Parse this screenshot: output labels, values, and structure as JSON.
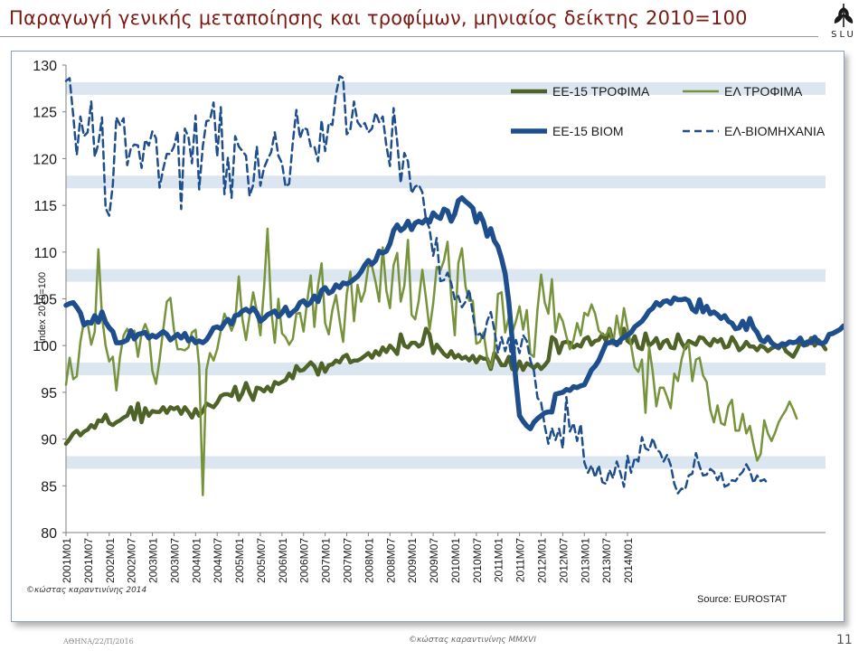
{
  "slide": {
    "title": "Παραγωγή γενικής μεταποίησης και τροφίμων, μηνιαίος δείκτης 2010=100",
    "logo_text": "SLU",
    "footer_left": "ΑΘΗΝΑ/22/Π/2016",
    "footer_center": "©κώστας καραντινίνης MMXVI",
    "page_number": "11"
  },
  "chart_data": {
    "type": "line",
    "ylabel": "Index 2010=100",
    "ylim": [
      80,
      130
    ],
    "yticks": [
      80,
      85,
      90,
      95,
      100,
      105,
      110,
      115,
      120,
      125,
      130
    ],
    "xtick_labels": [
      "2001M01",
      "2001M07",
      "2002M01",
      "2002M07",
      "2003M01",
      "2003M07",
      "2004M01",
      "2004M07",
      "2005M01",
      "2005M07",
      "2006M01",
      "2006M07",
      "2007M01",
      "2007M07",
      "2008M01",
      "2008M07",
      "2009M01",
      "2009M07",
      "2010M01",
      "2010M07",
      "2011M01",
      "2011M07",
      "2012M01",
      "2012M07",
      "2013M01",
      "2013M07",
      "2014M01"
    ],
    "x_start": "2001M01",
    "x_end": "2014M06",
    "grid": "alternating horizontal bands",
    "legend_position": "top-right",
    "watermark": "©κώστας καραντινίνης 2014",
    "source": "Source: EUROSTAT",
    "series": [
      {
        "name": "ΕΕ-15 ΤΡΟΦΙΜΑ",
        "color": "#4f6228",
        "width": 4.5,
        "dash": "none",
        "values": [
          89.5,
          90,
          90.6,
          90.9,
          90.4,
          90.8,
          91,
          91.5,
          91.2,
          92,
          91.9,
          92.6,
          91.7,
          91.5,
          91.8,
          92,
          92.3,
          92.5,
          93.4,
          92.1,
          93.8,
          91.8,
          93.3,
          92.5,
          93,
          92.9,
          92.9,
          93.4,
          92.8,
          93.4,
          93.2,
          93.4,
          92.7,
          93.4,
          92.9,
          92.3,
          93.2,
          92.5,
          93,
          93.8,
          93.6,
          93.4,
          93.9,
          94.6,
          94.8,
          94.8,
          94.6,
          95.6,
          94.2,
          94.9,
          96,
          95,
          94.2,
          95.5,
          95.4,
          95.1,
          95.6,
          95.1,
          96.1,
          95.9,
          96.1,
          96.3,
          97,
          96.5,
          97.8,
          97.3,
          97.4,
          97.8,
          98.2,
          97.8,
          96.9,
          98.1,
          97.2,
          97.9,
          98,
          98.4,
          98.2,
          98.8,
          99,
          98.2,
          98.4,
          98.4,
          98.6,
          98.9,
          99.2,
          98.7,
          99.4,
          99,
          99.8,
          99.3,
          100,
          99.6,
          99.1,
          101.2,
          100,
          99.8,
          100.3,
          100.3,
          99.9,
          100.2,
          101.8,
          101.2,
          99.2,
          100.1,
          99.6,
          99.1,
          98.8,
          99.4,
          98.7,
          99,
          98.6,
          98.8,
          98.4,
          98.9,
          98.2,
          98.8,
          98.6,
          98.6,
          97.5,
          99.2,
          98.6,
          97.9,
          97.9,
          98.8,
          97.5,
          97.3,
          98.3,
          97.4,
          98.1,
          97.9,
          97.6,
          98,
          97.5,
          97.9,
          98.4,
          100.9,
          100.6,
          99.2,
          100.3,
          100.4,
          100.3,
          99.8,
          100.1,
          99.9,
          100.7,
          100.9,
          100.1,
          100.5,
          100.6,
          101.2,
          100.5,
          101.8,
          100.2,
          100.4,
          100.3,
          101.8,
          100.5,
          100.2,
          101,
          99.8,
          99.6,
          101.3,
          100,
          100.3,
          100.8,
          99.7,
          100.4,
          100.6,
          99.8,
          99.7,
          101.2,
          100.3,
          99.7,
          100.5,
          100.3,
          100.1,
          100.9,
          100.8,
          100.3,
          100,
          100.7,
          100.4,
          100.7,
          99.8,
          99.9,
          100.9,
          100.3,
          99.5,
          99.8,
          100.4,
          99.9,
          99.9,
          99.5,
          100,
          99.8,
          99.4,
          99.7,
          99.9,
          99.7,
          100.2,
          99.4,
          99.1,
          98.8,
          99.5,
          100.3,
          100,
          100.1,
          100.8,
          100,
          100.6,
          100.2,
          99.6
        ]
      },
      {
        "name": "ΕΛ ΤΡΟΦΙΜΑ",
        "color": "#77933c",
        "width": 2.5,
        "dash": "none",
        "values": [
          95.8,
          98.7,
          96.4,
          96.7,
          100.4,
          102.6,
          102.4,
          100.1,
          101.5,
          110.3,
          103.1,
          100,
          98.3,
          98.8,
          95.2,
          98.8,
          101.1,
          101.8,
          100.9,
          101.6,
          98.8,
          101.3,
          102.3,
          101.3,
          97.3,
          95.9,
          98.5,
          101.7,
          104.7,
          105.1,
          101.7,
          99.6,
          99.6,
          99.5,
          99.8,
          101.4,
          101.7,
          97.8,
          84,
          97.4,
          99.2,
          98.4,
          99.6,
          101.6,
          103.4,
          102.6,
          101.6,
          102.6,
          107.4,
          102.8,
          100.6,
          103.2,
          105.7,
          103.7,
          101.1,
          106.1,
          112.5,
          103.9,
          100.3,
          105,
          101.3,
          100.9,
          100.1,
          100.7,
          103.4,
          103.5,
          101.5,
          104.7,
          107.5,
          102,
          106.4,
          108.8,
          102.4,
          101.2,
          103.8,
          105.4,
          102.7,
          100.4,
          105.5,
          107.9,
          102.6,
          106.5,
          104.7,
          105.8,
          108.5,
          108.5,
          106.8,
          104.7,
          110.5,
          105.9,
          104,
          108.6,
          109.9,
          104.7,
          106.4,
          111.3,
          103.3,
          102.8,
          104.8,
          108.1,
          105.1,
          101.7,
          104.5,
          108.4,
          108,
          109.1,
          111.1,
          105.3,
          101.1,
          108.8,
          110.4,
          106.3,
          104.8,
          104.8,
          100.2,
          100.4,
          101.4,
          98.7,
          97.6,
          99.4,
          105.5,
          105.7,
          101.4,
          103,
          101.4,
          102.6,
          104.2,
          101.7,
          103.8,
          99.1,
          98.8,
          103.9,
          107.6,
          104.6,
          103.4,
          107.1,
          101.4,
          103.4,
          102.6,
          101,
          99.6,
          100.6,
          102.4,
          101.1,
          103.5,
          103.2,
          104.4,
          103.4,
          101.6,
          101.2,
          101.1,
          101.8,
          100.1,
          103.2,
          101.1,
          104,
          101.9,
          100,
          97.7,
          97.2,
          98.5,
          92.8,
          99.9,
          97.2,
          93.5,
          95.5,
          95.5,
          94.5,
          93.3,
          97,
          96.2,
          98.5,
          99.9,
          100.2,
          96.2,
          98.5,
          98.7,
          96.8,
          96.1,
          93.1,
          91.8,
          93.6,
          91.7,
          91.5,
          93.5,
          94.2,
          90.9,
          90.9,
          92.7,
          90.6,
          91.4,
          89.4,
          87.7,
          88.4,
          92,
          90.6,
          89.8,
          90.7,
          91.8,
          92.5,
          93.1,
          94,
          93.2,
          92.2
        ]
      },
      {
        "name": "ΕΕ-15 ΒΙΟΜ",
        "color": "#1f4e8c",
        "width": 5.5,
        "dash": "none",
        "values": [
          104.3,
          104.5,
          104.6,
          104.1,
          103.5,
          102.2,
          102.5,
          102.4,
          103.2,
          102.5,
          103.6,
          102.5,
          101.9,
          101.5,
          100.3,
          100.3,
          100.4,
          100.6,
          101.6,
          100.7,
          101.2,
          101.3,
          101.4,
          100.8,
          101.1,
          100.9,
          101.2,
          101.5,
          101.2,
          100.6,
          100.9,
          101.2,
          100.8,
          101.3,
          100.5,
          100.8,
          100.3,
          100.5,
          100.3,
          100.6,
          101.2,
          101.9,
          102,
          101.8,
          102.4,
          102.8,
          102.3,
          103.2,
          103.3,
          103.7,
          103.9,
          103.6,
          104,
          103.5,
          102.6,
          102.9,
          103.3,
          103.5,
          103.7,
          103.1,
          103.5,
          104.1,
          103.2,
          103.6,
          103.9,
          104.6,
          104.8,
          104.3,
          104.6,
          105.3,
          104.7,
          105.9,
          106.2,
          105.6,
          105.8,
          106.5,
          106.2,
          106.7,
          106.6,
          106.8,
          107.1,
          107.4,
          107.9,
          108.6,
          109.1,
          108.7,
          109.1,
          110.1,
          109.9,
          110.1,
          110.9,
          112.3,
          112.9,
          112.3,
          112.6,
          113.3,
          112.4,
          113.1,
          113.3,
          113.1,
          113.5,
          113.2,
          114.2,
          113.8,
          113.6,
          114.6,
          114.4,
          113.3,
          114.1,
          115.5,
          115.8,
          115.4,
          115.1,
          114.7,
          113.2,
          114.1,
          113.2,
          111.7,
          112.5,
          111.2,
          110.6,
          109.3,
          107.7,
          104.7,
          100.5,
          96.2,
          92.5,
          91.9,
          91.4,
          91.1,
          91.8,
          92.2,
          92.5,
          92.8,
          92.9,
          92.9,
          94.8,
          94.9,
          95,
          95.3,
          95.2,
          95.6,
          95.5,
          95.7,
          95.8,
          96.6,
          97.4,
          97.8,
          98.4,
          99.3,
          100.2,
          100.3,
          100.5,
          100.1,
          100.6,
          100.9,
          101.1,
          101.4,
          102,
          102.3,
          102.6,
          103.1,
          103.7,
          104,
          104.6,
          104.3,
          104.7,
          104.8,
          104.5,
          105.1,
          104.9,
          104.9,
          105,
          104.8,
          103.9,
          103.6,
          104.9,
          103.6,
          104.2,
          103.4,
          103.6,
          103.3,
          102.9,
          103.2,
          102.6,
          102.4,
          101.8,
          101.9,
          102.6,
          101.7,
          102.9,
          101.9,
          101.4,
          100.6,
          100.4,
          100.9,
          100.3,
          100,
          99.9,
          100.2,
          100.1,
          100.4,
          100.3,
          100.4,
          100.8,
          100.1,
          100.4,
          100.3,
          100.9,
          100.3,
          100.2,
          100.4,
          101.2,
          101.3,
          101.5,
          101.7,
          102.1,
          102.2,
          102.6,
          102.5
        ]
      },
      {
        "name": "ΕΛ-ΒΙΟΜΗΧΑΝΙΑ",
        "color": "#1f4e8c",
        "width": 2.5,
        "dash": "8,5",
        "values": [
          128.3,
          128.6,
          124.6,
          120.4,
          124.5,
          122.4,
          122.8,
          126.1,
          120.2,
          121.6,
          124.4,
          114.7,
          113.9,
          117.2,
          124.4,
          123.6,
          124.3,
          119.3,
          121.1,
          121.5,
          121.4,
          119,
          122,
          121.4,
          122.9,
          122.2,
          116.9,
          118.9,
          120.5,
          120.5,
          121.3,
          122.9,
          114.6,
          123.2,
          122.3,
          119.5,
          124.6,
          116.7,
          121.3,
          124,
          124.1,
          126,
          120.2,
          125.5,
          116.2,
          120.1,
          115.8,
          122.4,
          121.3,
          120.8,
          120.3,
          116,
          117.2,
          121.3,
          117.1,
          119,
          119.9,
          120.7,
          122.8,
          120.3,
          119.5,
          117,
          117.3,
          121.7,
          125.2,
          122.2,
          123.3,
          123.1,
          121.3,
          121.3,
          119.7,
          124.1,
          120.8,
          123.8,
          123.6,
          126.9,
          128.8,
          128.6,
          122.6,
          123.1,
          126.1,
          123.9,
          123.4,
          123.8,
          122.8,
          123.2,
          124.9,
          123.9,
          124.5,
          121.4,
          119.2,
          125.4,
          121.8,
          117.4,
          120.6,
          119.7,
          116.3,
          117,
          117.2,
          116.4,
          113.5,
          112.5,
          109.6,
          111.5,
          106.9,
          107,
          107.8,
          106.7,
          104.9,
          105.3,
          104.1,
          104.7,
          106,
          103.4,
          101,
          101.3,
          100.7,
          102.6,
          103.6,
          101.7,
          99.2,
          100.9,
          99.4,
          100.8,
          97.7,
          100.6,
          99.2,
          101.1,
          100.5,
          98.4,
          97.3,
          94.4,
          93.9,
          91.4,
          89.5,
          91.2,
          89.9,
          91.1,
          89,
          94.5,
          90.8,
          91.7,
          89.8,
          91.6,
          87.5,
          86.4,
          87.2,
          85.9,
          87.2,
          85.4,
          85.2,
          86.7,
          85.8,
          87.6,
          86.4,
          84.9,
          88.2,
          86.4,
          88,
          87.6,
          90.2,
          89,
          88.8,
          90.1,
          88.9,
          88.6,
          87.6,
          88.3,
          87.2,
          85.2,
          84.2,
          84.7,
          84.6,
          86.1,
          86.3,
          88.5,
          87.1,
          86.1,
          86.2,
          86.8,
          86.5,
          85.6,
          86.4,
          84.9,
          85.1,
          85.6,
          85.5,
          86.1,
          86.5,
          87.3,
          86.6,
          85.3,
          86.1,
          85.5,
          85.7,
          85.2
        ]
      }
    ]
  }
}
